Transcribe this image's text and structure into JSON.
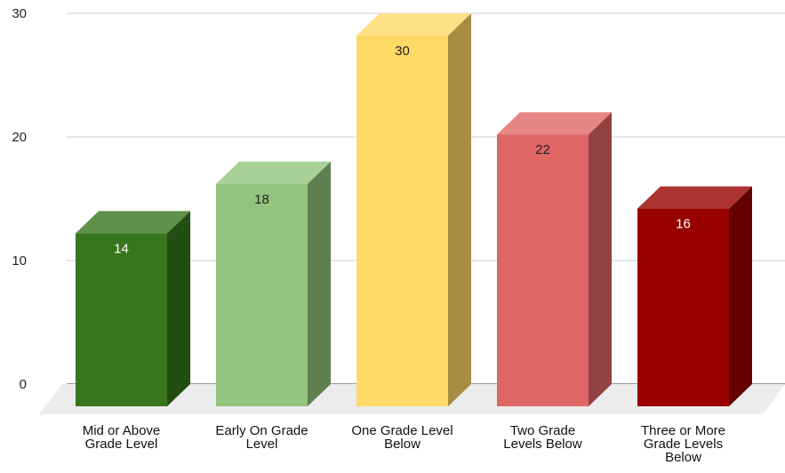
{
  "chart_data": {
    "type": "bar",
    "style": "3d",
    "categories": [
      "Mid or Above Grade Level",
      "Early On Grade Level",
      "One Grade Level Below",
      "Two Grade Levels Below",
      "Three or More Grade Levels Below"
    ],
    "category_lines": [
      [
        "Mid or Above",
        "Grade Level"
      ],
      [
        "Early On Grade",
        "Level"
      ],
      [
        "One Grade Level",
        "Below"
      ],
      [
        "Two Grade",
        "Levels Below"
      ],
      [
        "Three or More",
        "Grade Levels",
        "Below"
      ]
    ],
    "values": [
      14,
      18,
      30,
      22,
      16
    ],
    "data_labels": [
      "14",
      "18",
      "30",
      "22",
      "16"
    ],
    "colors": [
      "#38761d",
      "#93c47d",
      "#ffd966",
      "#e06666",
      "#990000"
    ],
    "label_colors": [
      "#ffffff",
      "#222222",
      "#222222",
      "#222222",
      "#ffffff"
    ],
    "yticks": [
      "0",
      "10",
      "20",
      "30"
    ],
    "ylim": [
      0,
      30
    ],
    "grid": true,
    "legend": "none",
    "title": "",
    "xlabel": "",
    "ylabel": ""
  }
}
